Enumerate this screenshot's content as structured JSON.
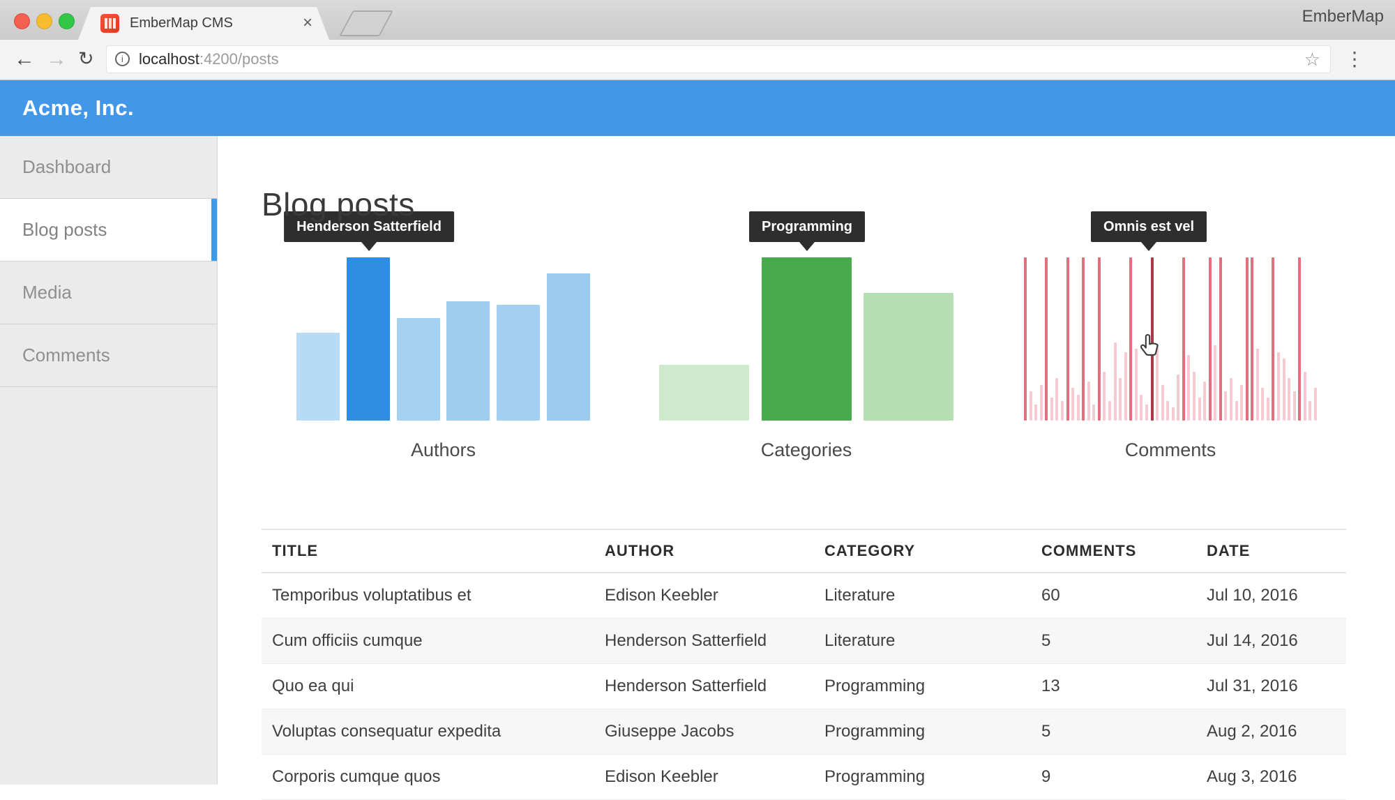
{
  "browser": {
    "tab": {
      "title": "EmberMap CMS"
    },
    "icons": {
      "close": "×",
      "back": "←",
      "forward": "→",
      "refresh": "↻",
      "info": "i",
      "star": "☆",
      "menu": "⋮"
    },
    "url": {
      "host": "localhost",
      "path": ":4200/posts"
    },
    "watermark": "EmberMap"
  },
  "app": {
    "brand": "Acme, Inc."
  },
  "sidebar": {
    "items": [
      {
        "label": "Dashboard",
        "active": false
      },
      {
        "label": "Blog posts",
        "active": true
      },
      {
        "label": "Media",
        "active": false
      },
      {
        "label": "Comments",
        "active": false
      }
    ]
  },
  "page": {
    "title": "Blog posts"
  },
  "chart_data": [
    {
      "type": "bar",
      "title": "Authors",
      "tooltip": "Henderson Satterfield",
      "highlight_index": 1,
      "values": [
        0.54,
        1.0,
        0.63,
        0.73,
        0.71,
        0.9
      ],
      "bar_colors": [
        "#b7dbf5",
        "#2d8de2",
        "#a5d1f1",
        "#9ecdf0",
        "#a3cff1",
        "#9acbef"
      ],
      "colors": {
        "bar": "#a9d3f2",
        "active": "#2d8de2"
      },
      "ylim": [
        0,
        1
      ],
      "x_tick_labels": "none",
      "legend": "none"
    },
    {
      "type": "bar",
      "title": "Categories",
      "tooltip": "Programming",
      "highlight_index": 1,
      "values": [
        0.34,
        1.0,
        0.78
      ],
      "bar_colors": [
        "#cfe9cc",
        "#47ab4d",
        "#b5dfb2"
      ],
      "colors": {
        "bar": "#c5e5c2",
        "active": "#47ab4d"
      },
      "ylim": [
        0,
        1
      ],
      "x_tick_labels": "none",
      "legend": "none"
    },
    {
      "type": "bar",
      "title": "Comments",
      "tooltip": "Omnis est vel",
      "highlight_index": 24,
      "values": [
        1,
        0.18,
        0.1,
        0.22,
        1,
        0.14,
        0.26,
        0.12,
        1,
        0.2,
        0.16,
        1,
        0.24,
        0.1,
        1,
        0.3,
        0.12,
        0.48,
        0.26,
        0.42,
        1,
        0.44,
        0.16,
        0.1,
        1,
        0.46,
        0.22,
        0.12,
        0.08,
        0.28,
        1,
        0.4,
        0.3,
        0.14,
        0.24,
        1,
        0.46,
        1,
        0.18,
        0.26,
        0.12,
        0.22,
        1,
        1,
        0.44,
        0.2,
        0.14,
        1,
        0.42,
        0.38,
        0.26,
        0.18,
        1,
        0.3,
        0.12,
        0.2
      ],
      "colors": {
        "bar": "#f7c9d0",
        "spike": "#e0707e",
        "active": "#a93a45"
      },
      "ylim": [
        0,
        1
      ],
      "x_tick_labels": "none",
      "legend": "none"
    }
  ],
  "table": {
    "headers": [
      "TITLE",
      "AUTHOR",
      "CATEGORY",
      "COMMENTS",
      "DATE"
    ],
    "rows": [
      [
        "Temporibus voluptatibus et",
        "Edison Keebler",
        "Literature",
        "60",
        "Jul 10, 2016"
      ],
      [
        "Cum officiis cumque",
        "Henderson Satterfield",
        "Literature",
        "5",
        "Jul 14, 2016"
      ],
      [
        "Quo ea qui",
        "Henderson Satterfield",
        "Programming",
        "13",
        "Jul 31, 2016"
      ],
      [
        "Voluptas consequatur expedita",
        "Giuseppe Jacobs",
        "Programming",
        "5",
        "Aug 2, 2016"
      ],
      [
        "Corporis cumque quos",
        "Edison Keebler",
        "Programming",
        "9",
        "Aug 3, 2016"
      ]
    ]
  },
  "colors": {
    "accent_blue": "#4297e8",
    "active_bar_blue": "#2d8de2",
    "active_bar_green": "#47ab4d",
    "spike_red": "#e0707e",
    "hover_red": "#a93a45",
    "tooltip_bg": "#2e2e2e"
  }
}
